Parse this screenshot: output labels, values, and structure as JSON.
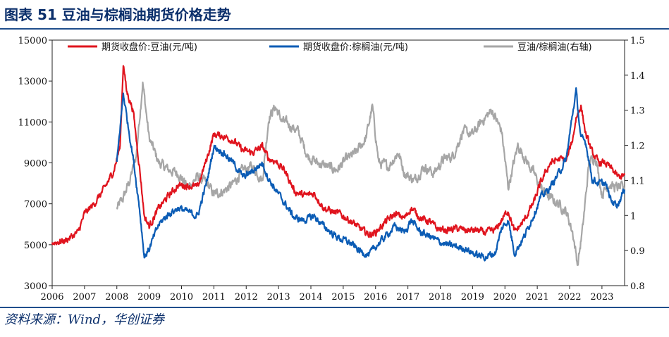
{
  "header": {
    "title": "图表 51  豆油与棕榈油期货价格走势"
  },
  "footer": {
    "source": "资料来源：Wind，华创证券"
  },
  "colors": {
    "soy": "#e0141e",
    "palm": "#0b5cb5",
    "ratio": "#a6a6a6",
    "rule": "#1f4e8c",
    "title": "#0b2f6b"
  },
  "chart_data": {
    "type": "line",
    "title": "",
    "legend": {
      "placement": "top",
      "entries": [
        "期货收盘价:豆油(元/吨)",
        "期货收盘价:棕榈油(元/吨)",
        "豆油/棕榈油(右轴)"
      ]
    },
    "x_ticks": [
      "2006",
      "2007",
      "2008",
      "2009",
      "2010",
      "2011",
      "2012",
      "2013",
      "2014",
      "2015",
      "2016",
      "2017",
      "2018",
      "2019",
      "2020",
      "2021",
      "2022",
      "2023"
    ],
    "xlim": [
      2006.0,
      2023.7
    ],
    "ylim_left": [
      3000,
      15000
    ],
    "yticks_left": [
      "3000",
      "5000",
      "7000",
      "9000",
      "11000",
      "13000",
      "15000"
    ],
    "ylim_right": [
      0.8,
      1.5
    ],
    "yticks_right": [
      "0.8",
      "0.9",
      "1",
      "1.1",
      "1.2",
      "1.3",
      "1.4",
      "1.5"
    ],
    "grid": false,
    "series": [
      {
        "name": "期货收盘价:豆油(元/吨)",
        "axis": "left",
        "x": [
          2006.0,
          2006.4,
          2006.8,
          2007.0,
          2007.3,
          2007.6,
          2007.9,
          2008.1,
          2008.2,
          2008.3,
          2008.5,
          2008.7,
          2008.85,
          2009.0,
          2009.3,
          2009.6,
          2009.9,
          2010.2,
          2010.5,
          2010.8,
          2011.0,
          2011.3,
          2011.6,
          2011.9,
          2012.2,
          2012.5,
          2012.7,
          2012.9,
          2013.2,
          2013.5,
          2013.8,
          2014.1,
          2014.4,
          2014.7,
          2014.9,
          2015.2,
          2015.5,
          2015.8,
          2016.0,
          2016.3,
          2016.6,
          2016.9,
          2017.1,
          2017.4,
          2017.7,
          2017.9,
          2018.2,
          2018.5,
          2018.8,
          2019.1,
          2019.4,
          2019.7,
          2019.9,
          2020.1,
          2020.3,
          2020.6,
          2020.9,
          2021.1,
          2021.4,
          2021.7,
          2021.9,
          2022.1,
          2022.2,
          2022.35,
          2022.5,
          2022.7,
          2022.9,
          2023.1,
          2023.3,
          2023.5,
          2023.7
        ],
        "values": [
          5100,
          5200,
          5600,
          6500,
          7000,
          7700,
          8600,
          9800,
          13900,
          12500,
          11600,
          8800,
          6400,
          5900,
          6800,
          7400,
          7900,
          7900,
          7800,
          9300,
          10400,
          10300,
          10100,
          9600,
          9500,
          9800,
          9200,
          9100,
          8600,
          7600,
          7400,
          7500,
          6800,
          6600,
          6500,
          6200,
          5800,
          5500,
          5600,
          6100,
          6500,
          6300,
          6800,
          6300,
          6100,
          5800,
          5700,
          5800,
          5700,
          5700,
          5600,
          5700,
          6200,
          6700,
          5600,
          6200,
          7100,
          8000,
          9000,
          9200,
          9100,
          10200,
          11200,
          11800,
          10400,
          9500,
          9000,
          9000,
          8700,
          8300,
          8400
        ]
      },
      {
        "name": "期货收盘价:棕榈油(元/吨)",
        "axis": "left",
        "x": [
          2008.0,
          2008.2,
          2008.35,
          2008.5,
          2008.7,
          2008.85,
          2009.0,
          2009.3,
          2009.6,
          2009.9,
          2010.2,
          2010.5,
          2010.8,
          2011.0,
          2011.3,
          2011.6,
          2011.9,
          2012.2,
          2012.5,
          2012.7,
          2012.9,
          2013.2,
          2013.5,
          2013.8,
          2014.1,
          2014.4,
          2014.7,
          2014.9,
          2015.2,
          2015.5,
          2015.8,
          2016.0,
          2016.3,
          2016.6,
          2016.9,
          2017.1,
          2017.4,
          2017.7,
          2017.9,
          2018.2,
          2018.5,
          2018.8,
          2019.1,
          2019.4,
          2019.7,
          2019.9,
          2020.1,
          2020.3,
          2020.6,
          2020.9,
          2021.1,
          2021.4,
          2021.7,
          2021.9,
          2022.1,
          2022.2,
          2022.35,
          2022.5,
          2022.7,
          2022.9,
          2023.1,
          2023.3,
          2023.5,
          2023.7
        ],
        "values": [
          9000,
          12400,
          10800,
          9300,
          6800,
          4400,
          4800,
          6000,
          6500,
          6800,
          6600,
          6400,
          8200,
          9800,
          9500,
          9000,
          8300,
          8600,
          9000,
          8200,
          7700,
          7000,
          6300,
          6200,
          6400,
          5900,
          5500,
          5300,
          5100,
          4700,
          4500,
          4900,
          5400,
          5900,
          5600,
          6200,
          5600,
          5400,
          5200,
          5000,
          4900,
          4800,
          4500,
          4400,
          4600,
          5800,
          6200,
          4600,
          5400,
          6500,
          7300,
          7800,
          8600,
          9200,
          11500,
          12500,
          10200,
          10000,
          8200,
          8000,
          8000,
          7100,
          7000,
          7700
        ]
      },
      {
        "name": "豆油/棕榈油(右轴)",
        "axis": "right",
        "x": [
          2008.0,
          2008.2,
          2008.4,
          2008.6,
          2008.8,
          2009.0,
          2009.3,
          2009.6,
          2009.9,
          2010.2,
          2010.5,
          2010.8,
          2011.0,
          2011.3,
          2011.6,
          2011.9,
          2012.2,
          2012.5,
          2012.7,
          2012.9,
          2013.1,
          2013.3,
          2013.6,
          2013.9,
          2014.2,
          2014.5,
          2014.8,
          2015.1,
          2015.4,
          2015.7,
          2015.9,
          2016.1,
          2016.4,
          2016.7,
          2016.9,
          2017.2,
          2017.5,
          2017.8,
          2018.1,
          2018.4,
          2018.7,
          2019.0,
          2019.3,
          2019.6,
          2019.9,
          2020.1,
          2020.4,
          2020.7,
          2020.9,
          2021.1,
          2021.4,
          2021.7,
          2021.9,
          2022.1,
          2022.25,
          2022.4,
          2022.6,
          2022.8,
          2023.0,
          2023.2,
          2023.4,
          2023.6,
          2023.7
        ],
        "values": [
          1.02,
          1.05,
          1.1,
          1.17,
          1.38,
          1.22,
          1.15,
          1.13,
          1.12,
          1.08,
          1.11,
          1.09,
          1.06,
          1.07,
          1.09,
          1.13,
          1.14,
          1.1,
          1.28,
          1.31,
          1.27,
          1.26,
          1.24,
          1.17,
          1.15,
          1.14,
          1.13,
          1.16,
          1.18,
          1.22,
          1.31,
          1.15,
          1.14,
          1.18,
          1.12,
          1.1,
          1.14,
          1.12,
          1.16,
          1.17,
          1.24,
          1.23,
          1.27,
          1.3,
          1.24,
          1.08,
          1.2,
          1.15,
          1.12,
          1.08,
          1.05,
          1.03,
          1.01,
          0.95,
          0.86,
          0.96,
          1.15,
          1.17,
          1.06,
          1.09,
          1.08,
          1.08,
          1.07
        ]
      }
    ]
  }
}
